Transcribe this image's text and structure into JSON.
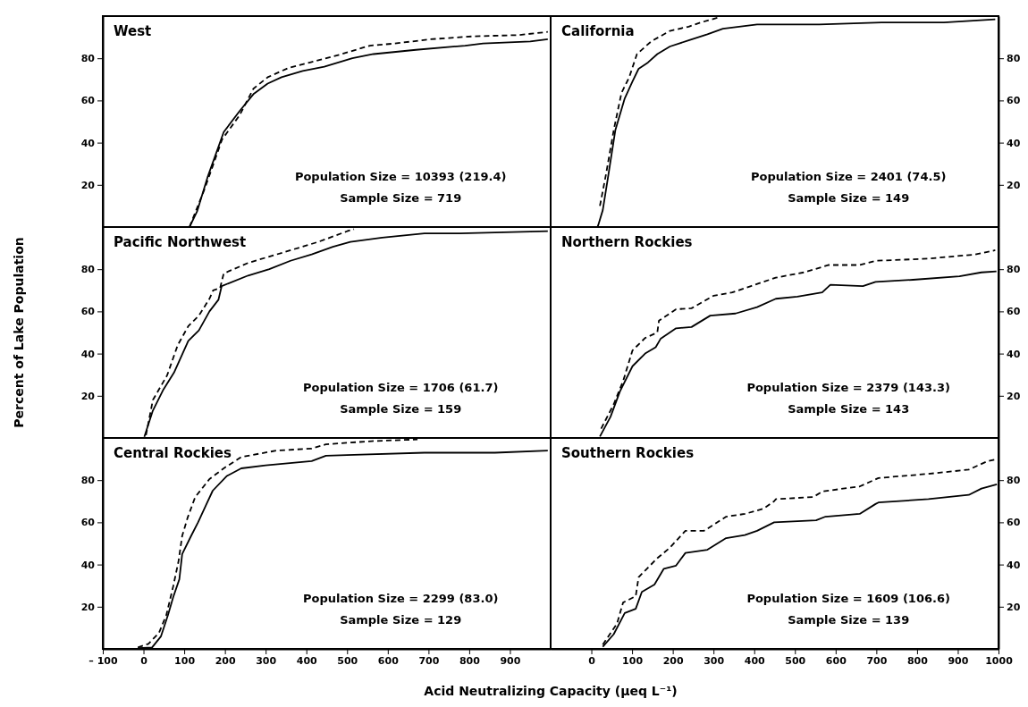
{
  "chart_data": [
    {
      "type": "line",
      "title": "West",
      "ylabel": "Percent of Lake Population",
      "xlim": [
        -100,
        1000
      ],
      "ylim": [
        0,
        100
      ],
      "yticks": [
        20,
        40,
        60,
        80
      ],
      "tick_labels": "y",
      "annotations": [
        "Population Size = 10393 (219.4)",
        "Sample Size = 719"
      ],
      "series": [
        {
          "color": "#000000",
          "line_style": "solid",
          "x": [
            113,
            132,
            158,
            197,
            236,
            270,
            305,
            339,
            391,
            444,
            513,
            565,
            669,
            790,
            834,
            950,
            993
          ],
          "values": [
            0,
            7.6,
            24,
            45,
            55,
            63,
            68,
            71,
            74,
            76,
            80,
            82,
            84,
            86,
            87,
            88,
            89
          ]
        },
        {
          "color": "#000000",
          "line_style": "dashed",
          "x": [
            113,
            150,
            193,
            236,
            270,
            305,
            357,
            409,
            487,
            556,
            617,
            704,
            808,
            920,
            993
          ],
          "values": [
            0,
            18,
            41.5,
            53,
            65.6,
            71,
            75.5,
            78,
            82,
            86,
            87,
            89,
            90.4,
            91,
            92.5
          ]
        }
      ]
    },
    {
      "type": "line",
      "title": "California",
      "xlim": [
        -100,
        1000
      ],
      "ylim": [
        0,
        100
      ],
      "yticks": [
        20,
        40,
        60,
        80
      ],
      "tick_labels": "y",
      "annotations": [
        "Population Size = 2401 (74.5)",
        "Sample Size = 149"
      ],
      "series": [
        {
          "color": "#000000",
          "line_style": "solid",
          "x": [
            15,
            17,
            28,
            40,
            59,
            82,
            101,
            116,
            139,
            162,
            193,
            239,
            285,
            323,
            407,
            560,
            713,
            866,
            992
          ],
          "values": [
            0,
            1,
            8,
            22.5,
            46,
            61,
            69,
            75,
            78,
            82,
            85.6,
            88.5,
            91.4,
            94,
            96,
            96,
            97,
            97,
            98.5
          ]
        },
        {
          "color": "#000000",
          "line_style": "dashed",
          "x": [
            21,
            36,
            55,
            74,
            93,
            112,
            147,
            193,
            239,
            269,
            315
          ],
          "values": [
            10,
            25,
            46,
            63.6,
            71,
            82,
            88,
            93,
            95,
            97,
            99.5
          ]
        }
      ]
    },
    {
      "type": "line",
      "title": "Pacific Northwest",
      "xlim": [
        -100,
        1000
      ],
      "ylim": [
        0,
        100
      ],
      "yticks": [
        20,
        40,
        60,
        80
      ],
      "tick_labels": "y",
      "annotations": [
        "Population Size = 1706 (61.7)",
        "Sample Size = 159"
      ],
      "series": [
        {
          "color": "#000000",
          "line_style": "solid",
          "x": [
            2,
            23,
            49,
            75,
            110,
            136,
            162,
            184,
            192,
            257,
            309,
            361,
            413,
            465,
            508,
            586,
            690,
            777,
            993
          ],
          "values": [
            0.5,
            13,
            23,
            31,
            46,
            51,
            60,
            65.5,
            72,
            77,
            80,
            84,
            87,
            90.6,
            93,
            95,
            97,
            97,
            98
          ]
        },
        {
          "color": "#000000",
          "line_style": "dashed",
          "x": [
            6,
            23,
            58,
            84,
            110,
            136,
            162,
            171,
            188,
            197,
            257,
            344,
            430,
            500,
            517
          ],
          "values": [
            1.3,
            18,
            29.7,
            44,
            53,
            58,
            66,
            70,
            71,
            78,
            83,
            88,
            93,
            98,
            99
          ]
        }
      ]
    },
    {
      "type": "line",
      "title": "Northern Rockies",
      "xlim": [
        -100,
        1000
      ],
      "ylim": [
        0,
        100
      ],
      "yticks": [
        20,
        40,
        60,
        80
      ],
      "tick_labels": "y",
      "annotations": [
        "Population Size = 2379 (143.3)",
        "Sample Size = 143"
      ],
      "series": [
        {
          "color": "#000000",
          "line_style": "solid",
          "x": [
            21,
            47,
            70,
            101,
            132,
            158,
            170,
            208,
            246,
            292,
            354,
            407,
            453,
            506,
            567,
            587,
            667,
            698,
            790,
            904,
            958,
            995
          ],
          "values": [
            0.7,
            10,
            22,
            34,
            40,
            43,
            47,
            52,
            52.6,
            58,
            59,
            62,
            66,
            67,
            69,
            72.6,
            72,
            74,
            75,
            76.6,
            78.5,
            79
          ]
        },
        {
          "color": "#000000",
          "line_style": "dashed",
          "x": [
            24,
            55,
            78,
            101,
            132,
            162,
            166,
            208,
            246,
            300,
            346,
            392,
            453,
            522,
            583,
            659,
            698,
            827,
            943,
            992
          ],
          "values": [
            4.4,
            16,
            27,
            41.5,
            47.4,
            50,
            55.6,
            61,
            61.5,
            67.4,
            69,
            72,
            76,
            78.5,
            82,
            82,
            84,
            85,
            87,
            89
          ]
        }
      ]
    },
    {
      "type": "line",
      "title": "Central Rockies",
      "xlabel": "Acid Neutralizing Capacity (μeq L⁻¹)",
      "xlim": [
        -100,
        1000
      ],
      "ylim": [
        0,
        100
      ],
      "yticks": [
        20,
        40,
        60,
        80
      ],
      "xticks": [
        {
          "value": -100,
          "label": "– 100"
        },
        0,
        100,
        200,
        300,
        400,
        500,
        600,
        700,
        800,
        900
      ],
      "annotations": [
        "Population Size = 2299 (83.0)",
        "Sample Size = 129"
      ],
      "series": [
        {
          "color": "#000000",
          "line_style": "solid",
          "x": [
            -14,
            21,
            43,
            60,
            73,
            88,
            95,
            117,
            134,
            153,
            170,
            205,
            240,
            300,
            413,
            448,
            517,
            690,
            863,
            993
          ],
          "values": [
            0.4,
            0.7,
            6,
            16,
            24.6,
            33,
            45,
            53.6,
            60,
            68,
            75,
            82,
            85.6,
            87,
            89,
            91.6,
            92,
            93,
            93,
            94
          ]
        },
        {
          "color": "#000000",
          "line_style": "dashed",
          "x": [
            -14,
            12,
            38,
            56,
            73,
            86,
            95,
            108,
            127,
            162,
            197,
            240,
            326,
            413,
            448,
            560,
            673
          ],
          "values": [
            0.7,
            2.4,
            7.6,
            16,
            29.7,
            41.6,
            53.6,
            62,
            72,
            80.5,
            85.6,
            91,
            94,
            95,
            97,
            98.5,
            99.3
          ]
        }
      ]
    },
    {
      "type": "line",
      "title": "Southern Rockies",
      "xlim": [
        -100,
        1000
      ],
      "ylim": [
        0,
        100
      ],
      "yticks": [
        20,
        40,
        60,
        80
      ],
      "xticks": [
        0,
        100,
        200,
        300,
        400,
        500,
        600,
        700,
        800,
        900,
        1000
      ],
      "annotations": [
        "Population Size = 1609 (106.6)",
        "Sample Size = 139"
      ],
      "series": [
        {
          "color": "#000000",
          "line_style": "solid",
          "x": [
            28,
            55,
            82,
            109,
            124,
            155,
            178,
            208,
            231,
            285,
            331,
            377,
            407,
            449,
            552,
            575,
            659,
            698,
            705,
            828,
            927,
            958,
            996
          ],
          "values": [
            1,
            7,
            17,
            19,
            27,
            30.5,
            38,
            39.5,
            45.5,
            47,
            52.5,
            54,
            56,
            60,
            61,
            62.7,
            64,
            68.7,
            69.4,
            71,
            73,
            76,
            78
          ]
        },
        {
          "color": "#000000",
          "line_style": "dashed",
          "x": [
            28,
            63,
            78,
            109,
            116,
            162,
            193,
            231,
            277,
            331,
            377,
            423,
            449,
            453,
            545,
            568,
            659,
            705,
            828,
            927,
            973,
            996
          ],
          "values": [
            2,
            12,
            22,
            25,
            34,
            43,
            48,
            56,
            56,
            62.7,
            64,
            66.5,
            70,
            71,
            72,
            74.7,
            77,
            81,
            83,
            85,
            89,
            90
          ]
        }
      ]
    }
  ]
}
